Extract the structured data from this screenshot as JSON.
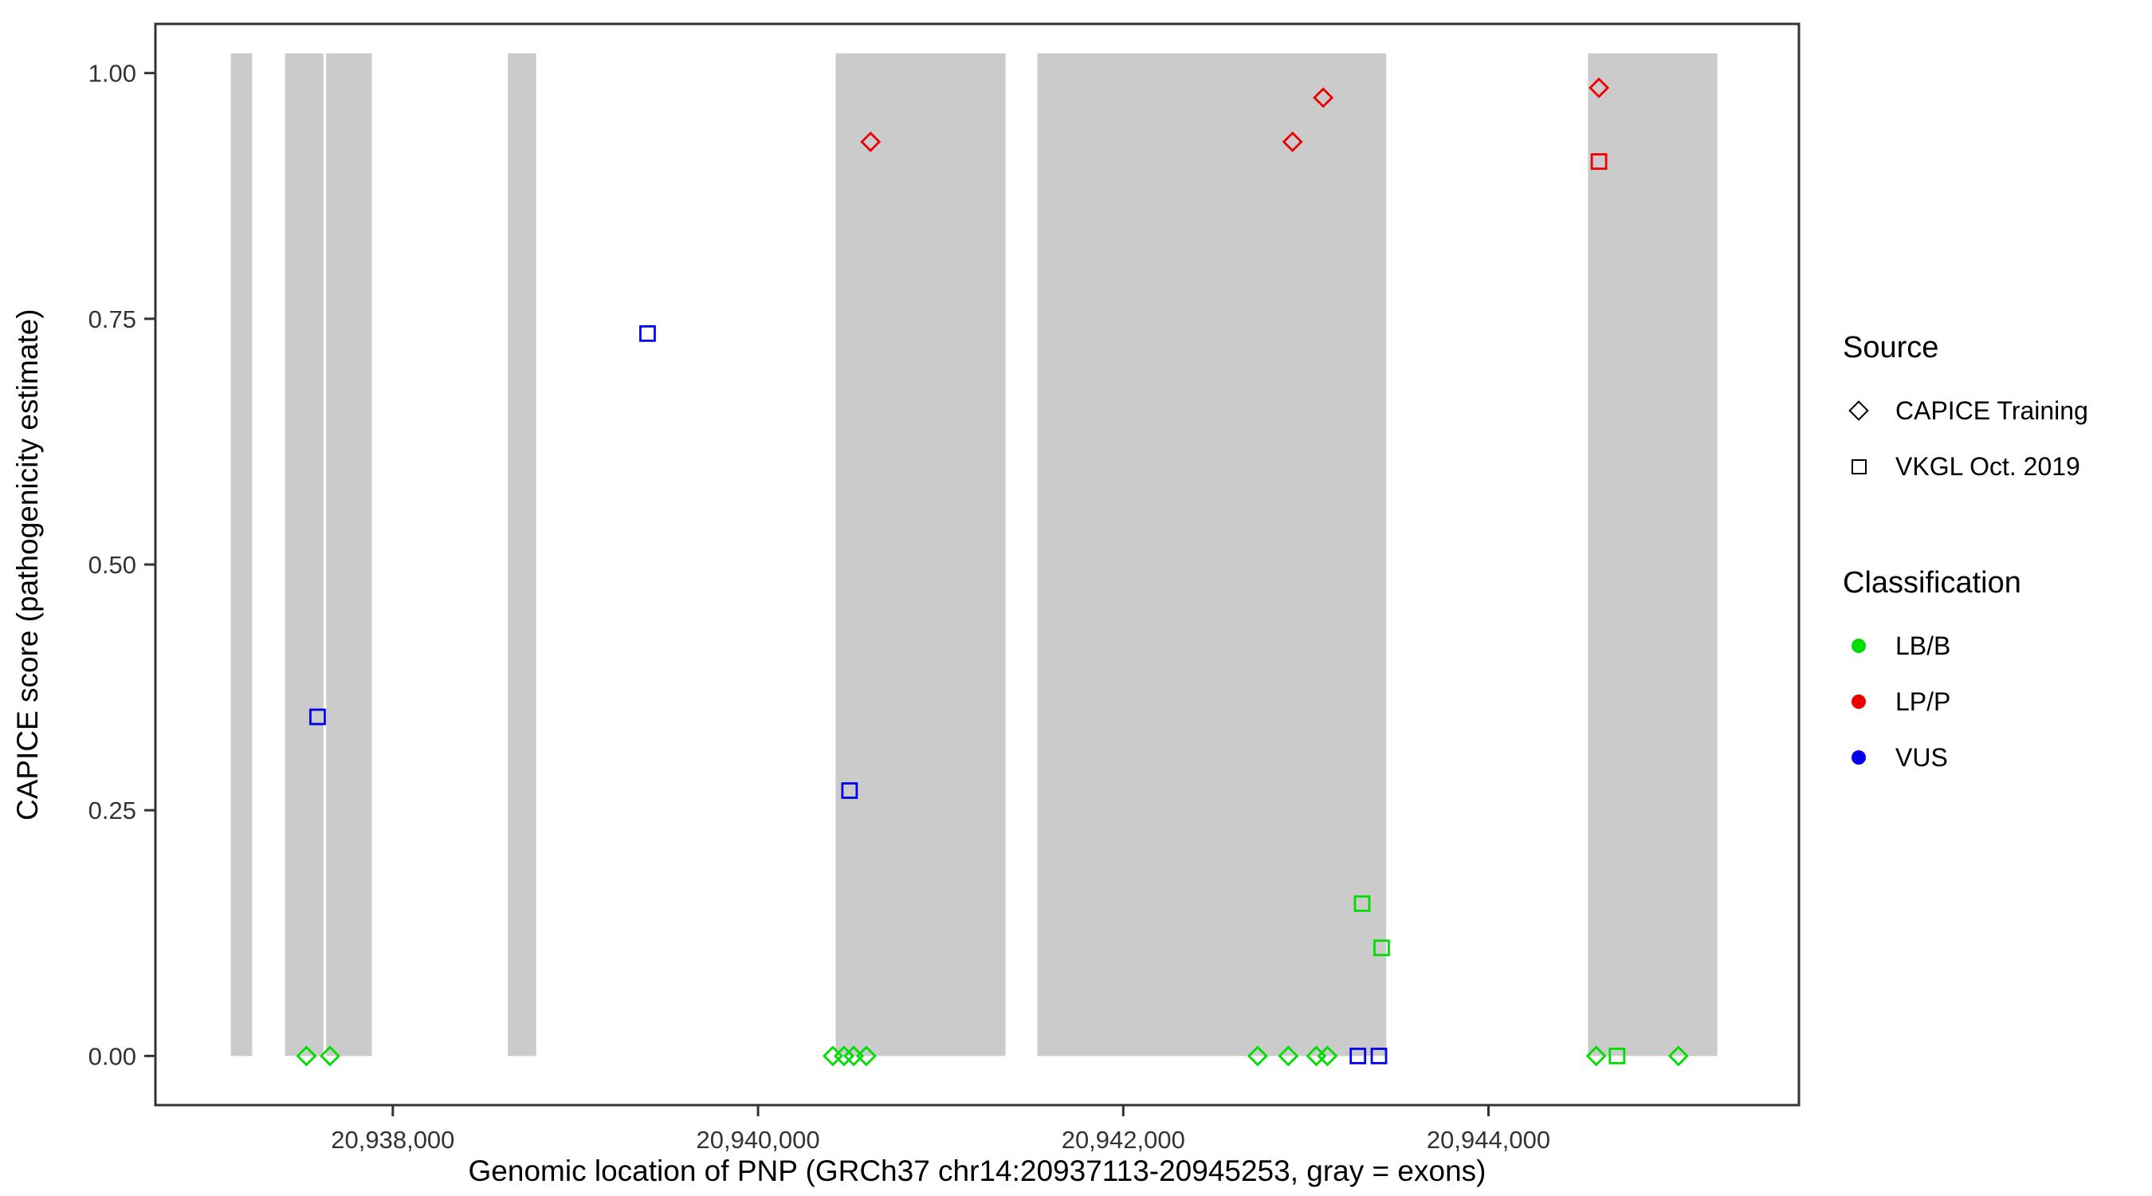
{
  "chart_data": {
    "type": "scatter",
    "title": "",
    "xlabel": "Genomic location of PNP (GRCh37 chr14:20937113-20945253, gray = exons)",
    "ylabel": "CAPICE score (pathogenicity estimate)",
    "x_range": [
      20936700,
      20945700
    ],
    "y_range": [
      -0.05,
      1.05
    ],
    "grid": "off",
    "legend_position": "right",
    "x_ticks": [
      {
        "value": 20938000,
        "label": "20,938,000"
      },
      {
        "value": 20940000,
        "label": "20,940,000"
      },
      {
        "value": 20942000,
        "label": "20,942,000"
      },
      {
        "value": 20944000,
        "label": "20,944,000"
      }
    ],
    "y_ticks": [
      {
        "value": 0.0,
        "label": "0.00"
      },
      {
        "value": 0.25,
        "label": "0.25"
      },
      {
        "value": 0.5,
        "label": "0.50"
      },
      {
        "value": 0.75,
        "label": "0.75"
      },
      {
        "value": 1.0,
        "label": "1.00"
      }
    ],
    "exon_color": "#CBCBCB",
    "exon_y_min": 0,
    "exon_y_max": 1.02,
    "exons": [
      [
        20937113,
        20937230
      ],
      [
        20937410,
        20937620
      ],
      [
        20937635,
        20937885
      ],
      [
        20938630,
        20938785
      ],
      [
        20940425,
        20941355
      ],
      [
        20941530,
        20943440
      ],
      [
        20944545,
        20945253
      ]
    ],
    "source_shapes": {
      "CAPICE Training": "diamond",
      "VKGL Oct. 2019": "square"
    },
    "classification_colors": {
      "LB/B": "#00DD00",
      "LP/P": "#EE0000",
      "VUS": "#0000EE"
    },
    "points": [
      {
        "x": 20937527,
        "y": 0.0,
        "classification": "LB/B",
        "source": "CAPICE Training"
      },
      {
        "x": 20937588,
        "y": 0.345,
        "classification": "VUS",
        "source": "VKGL Oct. 2019"
      },
      {
        "x": 20937656,
        "y": 0.0,
        "classification": "LB/B",
        "source": "CAPICE Training"
      },
      {
        "x": 20939395,
        "y": 0.735,
        "classification": "VUS",
        "source": "VKGL Oct. 2019"
      },
      {
        "x": 20940410,
        "y": 0.0,
        "classification": "LB/B",
        "source": "CAPICE Training"
      },
      {
        "x": 20940471,
        "y": 0.0,
        "classification": "LB/B",
        "source": "CAPICE Training"
      },
      {
        "x": 20940524,
        "y": 0.0,
        "classification": "LB/B",
        "source": "CAPICE Training"
      },
      {
        "x": 20940593,
        "y": 0.0,
        "classification": "LB/B",
        "source": "CAPICE Training"
      },
      {
        "x": 20940501,
        "y": 0.27,
        "classification": "VUS",
        "source": "VKGL Oct. 2019"
      },
      {
        "x": 20940616,
        "y": 0.93,
        "classification": "LP/P",
        "source": "CAPICE Training"
      },
      {
        "x": 20942736,
        "y": 0.0,
        "classification": "LB/B",
        "source": "CAPICE Training"
      },
      {
        "x": 20942904,
        "y": 0.0,
        "classification": "LB/B",
        "source": "CAPICE Training"
      },
      {
        "x": 20942927,
        "y": 0.93,
        "classification": "LP/P",
        "source": "CAPICE Training"
      },
      {
        "x": 20943057,
        "y": 0.0,
        "classification": "LB/B",
        "source": "CAPICE Training"
      },
      {
        "x": 20943118,
        "y": 0.0,
        "classification": "LB/B",
        "source": "CAPICE Training"
      },
      {
        "x": 20943095,
        "y": 0.975,
        "classification": "LP/P",
        "source": "CAPICE Training"
      },
      {
        "x": 20943285,
        "y": 0.0,
        "classification": "VUS",
        "source": "VKGL Oct. 2019"
      },
      {
        "x": 20943400,
        "y": 0.0,
        "classification": "VUS",
        "source": "VKGL Oct. 2019"
      },
      {
        "x": 20943308,
        "y": 0.155,
        "classification": "LB/B",
        "source": "VKGL Oct. 2019"
      },
      {
        "x": 20943415,
        "y": 0.11,
        "classification": "LB/B",
        "source": "VKGL Oct. 2019"
      },
      {
        "x": 20944590,
        "y": 0.0,
        "classification": "LB/B",
        "source": "CAPICE Training"
      },
      {
        "x": 20944605,
        "y": 0.985,
        "classification": "LP/P",
        "source": "CAPICE Training"
      },
      {
        "x": 20944605,
        "y": 0.91,
        "classification": "LP/P",
        "source": "VKGL Oct. 2019"
      },
      {
        "x": 20944704,
        "y": 0.0,
        "classification": "LB/B",
        "source": "VKGL Oct. 2019"
      },
      {
        "x": 20945040,
        "y": 0.0,
        "classification": "LB/B",
        "source": "CAPICE Training"
      }
    ],
    "legend": {
      "source": {
        "title": "Source",
        "items": [
          {
            "label": "CAPICE Training",
            "shape": "diamond"
          },
          {
            "label": "VKGL Oct. 2019",
            "shape": "square"
          }
        ]
      },
      "classification": {
        "title": "Classification",
        "items": [
          {
            "label": "LB/B",
            "color": "#00DD00"
          },
          {
            "label": "LP/P",
            "color": "#EE0000"
          },
          {
            "label": "VUS",
            "color": "#0000EE"
          }
        ]
      }
    }
  }
}
